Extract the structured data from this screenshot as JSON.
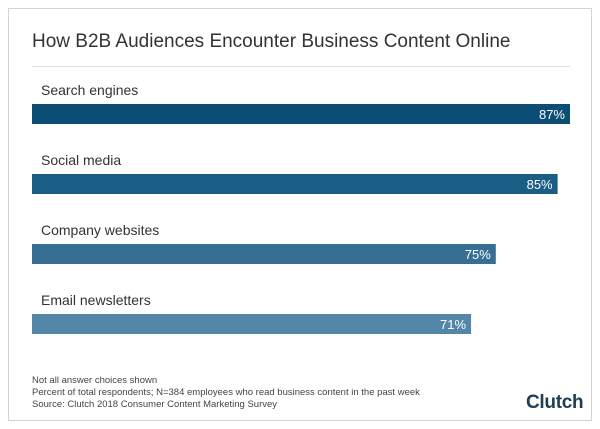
{
  "title": "How B2B Audiences Encounter Business Content Online",
  "chart_data": {
    "type": "bar",
    "orientation": "horizontal",
    "categories": [
      "Search engines",
      "Social media",
      "Company websites",
      "Email newsletters"
    ],
    "values": [
      87,
      85,
      75,
      71
    ],
    "value_labels": [
      "87%",
      "85%",
      "75%",
      "71%"
    ],
    "bar_colors": [
      "#0b4d75",
      "#1b5e85",
      "#376f94",
      "#5486a8"
    ],
    "xlim": [
      0,
      87
    ],
    "grid": false,
    "legend": "none"
  },
  "notes": [
    "Not all answer choices shown",
    "Percent of total respondents; N=384 employees who read business content in the past week",
    "Source: Clutch 2018 Consumer Content Marketing Survey"
  ],
  "logo": "Clutch"
}
